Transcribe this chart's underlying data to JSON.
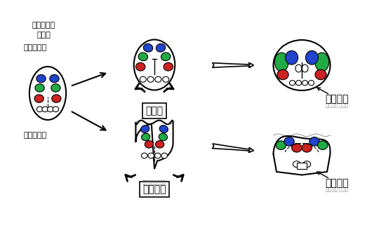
{
  "bg_color": "#f0f0f0",
  "blue": "#2244cc",
  "green": "#22aa44",
  "red": "#cc2222",
  "title_fish": "硬骨魚類",
  "title_fish_small": "こうこつぎょるい",
  "title_mammal": "哺乳類",
  "label_cortex_top": "大脳皮質",
  "label_cortex_small_top": "だいのう ひしつ",
  "label_cortex_bot": "大脳皮質",
  "label_cortex_small_bot": "だいのう ひしつ",
  "label_dorsal": "背（上）側",
  "label_ventral": "腹（下）側",
  "label_brain": "発達中の脳\n断面図"
}
